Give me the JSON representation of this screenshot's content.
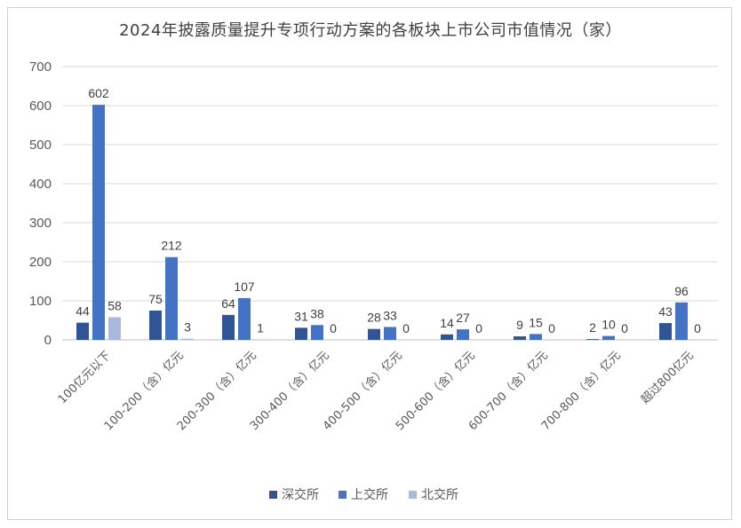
{
  "chart_data": {
    "type": "bar",
    "title": "2024年披露质量提升专项行动方案的各板块上市公司市值情况（家）",
    "categories": [
      "100亿元以下",
      "100-200（含）亿元",
      "200-300（含）亿元",
      "300-400（含）亿元",
      "400-500（含）亿元",
      "500-600（含）亿元",
      "600-700（含）亿元",
      "700-800（含）亿元",
      "超过800亿元"
    ],
    "series": [
      {
        "name": "深交所",
        "color": "#2f5597",
        "values": [
          44,
          75,
          64,
          31,
          28,
          14,
          9,
          2,
          43
        ]
      },
      {
        "name": "上交所",
        "color": "#4472c4",
        "values": [
          602,
          212,
          107,
          38,
          33,
          27,
          15,
          10,
          96
        ]
      },
      {
        "name": "北交所",
        "color": "#a9b9dc",
        "values": [
          58,
          3,
          1,
          0,
          0,
          0,
          0,
          0,
          0
        ]
      }
    ],
    "yticks": [
      0,
      100,
      200,
      300,
      400,
      500,
      600,
      700
    ],
    "ylim": [
      0,
      700
    ],
    "grid": true,
    "legend": "bottom"
  }
}
